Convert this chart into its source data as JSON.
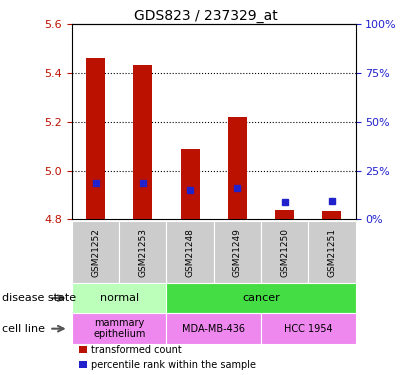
{
  "title": "GDS823 / 237329_at",
  "samples": [
    "GSM21252",
    "GSM21253",
    "GSM21248",
    "GSM21249",
    "GSM21250",
    "GSM21251"
  ],
  "bar_bottom": 4.8,
  "bar_tops": [
    5.46,
    5.435,
    5.09,
    5.22,
    4.84,
    4.835
  ],
  "blue_values": [
    4.95,
    4.95,
    4.92,
    4.93,
    4.87,
    4.875
  ],
  "ylim": [
    4.8,
    5.6
  ],
  "yticks_left": [
    4.8,
    5.0,
    5.2,
    5.4,
    5.6
  ],
  "yticks_right": [
    0,
    25,
    50,
    75,
    100
  ],
  "bar_color": "#bb1100",
  "blue_color": "#2222cc",
  "bar_width": 0.4,
  "disease_groups": [
    {
      "label": "normal",
      "indices": [
        0,
        1
      ],
      "color": "#bbffbb"
    },
    {
      "label": "cancer",
      "indices": [
        2,
        3,
        4,
        5
      ],
      "color": "#44dd44"
    }
  ],
  "cell_groups": [
    {
      "label": "mammary\nepithelium",
      "indices": [
        0,
        1
      ],
      "color": "#ee88ee"
    },
    {
      "label": "MDA-MB-436",
      "indices": [
        2,
        3
      ],
      "color": "#ee88ee"
    },
    {
      "label": "HCC 1954",
      "indices": [
        4,
        5
      ],
      "color": "#ee88ee"
    }
  ],
  "sample_bg_color": "#cccccc",
  "legend_red_label": "transformed count",
  "legend_blue_label": "percentile rank within the sample",
  "disease_label": "disease state",
  "cell_line_label": "cell line",
  "grid_yticks": [
    5.0,
    5.2,
    5.4
  ]
}
